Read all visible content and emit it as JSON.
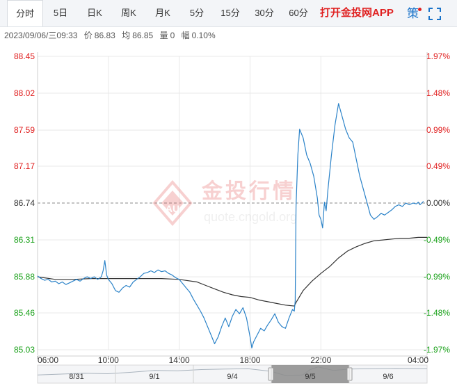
{
  "tabs": [
    {
      "label": "分时",
      "active": true
    },
    {
      "label": "5日"
    },
    {
      "label": "日K"
    },
    {
      "label": "周K"
    },
    {
      "label": "月K"
    },
    {
      "label": "5分"
    },
    {
      "label": "15分"
    },
    {
      "label": "30分"
    },
    {
      "label": "60分"
    }
  ],
  "app_link": "打开金投网APP",
  "ce_label": "策",
  "fullscreen_icon": "fullscreen-icon",
  "info": {
    "datetime": "2023/09/06/三09:33",
    "price_label": "价",
    "price": "86.83",
    "avg_label": "均",
    "avg": "86.85",
    "vol_label": "量",
    "vol": "0",
    "range_label": "幅",
    "range": "0.10%"
  },
  "watermark": {
    "text": "金投行情",
    "sub": "quote.cngold.org",
    "badge": "AU"
  },
  "colors": {
    "up": "#e02020",
    "down": "#1aa11a",
    "flat": "#333333",
    "price_line": "#2a82c8",
    "avg_line": "#333333",
    "grid": "#e8e8e8"
  },
  "chart_data": {
    "type": "line",
    "preclose": 86.74,
    "ylim": [
      85.03,
      88.45
    ],
    "y_ticks": [
      "88.45",
      "88.02",
      "87.59",
      "87.17",
      "86.74",
      "86.31",
      "85.88",
      "85.46",
      "85.03"
    ],
    "pct_ticks": [
      "1.97%",
      "1.48%",
      "0.99%",
      "0.49%",
      "0.00%",
      "-0.49%",
      "-0.99%",
      "-1.48%",
      "-1.97%"
    ],
    "x_ticks": [
      "06:00",
      "10:00",
      "14:00",
      "18:00",
      "22:00",
      "04:00"
    ],
    "x_tick_times": [
      0,
      4,
      8,
      12,
      16,
      22
    ],
    "x_range": [
      0,
      22
    ],
    "series": [
      {
        "points": [
          [
            0.0,
            85.89
          ],
          [
            0.2,
            85.86
          ],
          [
            0.4,
            85.84
          ],
          [
            0.6,
            85.85
          ],
          [
            0.8,
            85.82
          ],
          [
            1.0,
            85.83
          ],
          [
            1.2,
            85.8
          ],
          [
            1.4,
            85.82
          ],
          [
            1.6,
            85.79
          ],
          [
            1.8,
            85.81
          ],
          [
            2.0,
            85.83
          ],
          [
            2.2,
            85.85
          ],
          [
            2.4,
            85.83
          ],
          [
            2.6,
            85.86
          ],
          [
            2.8,
            85.88
          ],
          [
            3.0,
            85.86
          ],
          [
            3.2,
            85.88
          ],
          [
            3.4,
            85.85
          ],
          [
            3.6,
            85.88
          ],
          [
            3.7,
            85.95
          ],
          [
            3.8,
            86.07
          ],
          [
            3.9,
            85.9
          ],
          [
            4.0,
            85.85
          ],
          [
            4.2,
            85.8
          ],
          [
            4.4,
            85.72
          ],
          [
            4.6,
            85.7
          ],
          [
            4.8,
            85.75
          ],
          [
            5.0,
            85.78
          ],
          [
            5.2,
            85.76
          ],
          [
            5.4,
            85.82
          ],
          [
            5.6,
            85.85
          ],
          [
            5.8,
            85.88
          ],
          [
            6.0,
            85.92
          ],
          [
            6.2,
            85.93
          ],
          [
            6.4,
            85.95
          ],
          [
            6.6,
            85.93
          ],
          [
            6.8,
            85.96
          ],
          [
            7.0,
            85.94
          ],
          [
            7.2,
            85.95
          ],
          [
            7.4,
            85.92
          ],
          [
            7.6,
            85.9
          ],
          [
            7.8,
            85.87
          ],
          [
            8.0,
            85.85
          ],
          [
            8.2,
            85.8
          ],
          [
            8.4,
            85.75
          ],
          [
            8.6,
            85.7
          ],
          [
            8.8,
            85.62
          ],
          [
            9.0,
            85.55
          ],
          [
            9.2,
            85.48
          ],
          [
            9.4,
            85.4
          ],
          [
            9.6,
            85.3
          ],
          [
            9.8,
            85.2
          ],
          [
            10.0,
            85.1
          ],
          [
            10.2,
            85.18
          ],
          [
            10.4,
            85.3
          ],
          [
            10.6,
            85.4
          ],
          [
            10.8,
            85.3
          ],
          [
            11.0,
            85.42
          ],
          [
            11.2,
            85.5
          ],
          [
            11.4,
            85.45
          ],
          [
            11.6,
            85.52
          ],
          [
            11.8,
            85.4
          ],
          [
            12.0,
            85.18
          ],
          [
            12.1,
            85.05
          ],
          [
            12.2,
            85.12
          ],
          [
            12.4,
            85.2
          ],
          [
            12.6,
            85.28
          ],
          [
            12.8,
            85.25
          ],
          [
            13.0,
            85.32
          ],
          [
            13.2,
            85.38
          ],
          [
            13.4,
            85.45
          ],
          [
            13.6,
            85.35
          ],
          [
            13.8,
            85.3
          ],
          [
            14.0,
            85.28
          ],
          [
            14.2,
            85.4
          ],
          [
            14.4,
            85.5
          ],
          [
            14.5,
            85.48
          ],
          [
            14.55,
            85.6
          ],
          [
            14.6,
            86.7
          ],
          [
            14.7,
            87.3
          ],
          [
            14.8,
            87.6
          ],
          [
            15.0,
            87.5
          ],
          [
            15.2,
            87.3
          ],
          [
            15.4,
            87.2
          ],
          [
            15.6,
            87.05
          ],
          [
            15.8,
            86.8
          ],
          [
            15.9,
            86.6
          ],
          [
            16.0,
            86.55
          ],
          [
            16.1,
            86.45
          ],
          [
            16.2,
            86.75
          ],
          [
            16.3,
            86.65
          ],
          [
            16.4,
            86.9
          ],
          [
            16.6,
            87.3
          ],
          [
            16.8,
            87.65
          ],
          [
            17.0,
            87.9
          ],
          [
            17.2,
            87.75
          ],
          [
            17.4,
            87.6
          ],
          [
            17.6,
            87.5
          ],
          [
            17.8,
            87.45
          ],
          [
            18.0,
            87.25
          ],
          [
            18.2,
            87.05
          ],
          [
            18.4,
            86.9
          ],
          [
            18.6,
            86.75
          ],
          [
            18.8,
            86.6
          ],
          [
            19.0,
            86.55
          ],
          [
            19.2,
            86.58
          ],
          [
            19.4,
            86.62
          ],
          [
            19.6,
            86.6
          ],
          [
            19.8,
            86.63
          ],
          [
            20.0,
            86.66
          ],
          [
            20.2,
            86.7
          ],
          [
            20.4,
            86.72
          ],
          [
            20.6,
            86.7
          ],
          [
            20.8,
            86.74
          ],
          [
            21.0,
            86.72
          ],
          [
            21.2,
            86.74
          ],
          [
            21.4,
            86.73
          ],
          [
            21.5,
            86.75
          ],
          [
            21.6,
            86.72
          ],
          [
            21.8,
            86.76
          ]
        ]
      },
      {
        "points": [
          [
            0.0,
            85.88
          ],
          [
            1.0,
            85.85
          ],
          [
            2.0,
            85.85
          ],
          [
            3.0,
            85.86
          ],
          [
            4.0,
            85.86
          ],
          [
            5.0,
            85.86
          ],
          [
            6.0,
            85.86
          ],
          [
            7.0,
            85.86
          ],
          [
            8.0,
            85.85
          ],
          [
            9.0,
            85.82
          ],
          [
            9.5,
            85.78
          ],
          [
            10.0,
            85.74
          ],
          [
            10.5,
            85.7
          ],
          [
            11.0,
            85.67
          ],
          [
            11.5,
            85.65
          ],
          [
            12.0,
            85.64
          ],
          [
            12.5,
            85.61
          ],
          [
            13.0,
            85.59
          ],
          [
            13.5,
            85.57
          ],
          [
            14.0,
            85.55
          ],
          [
            14.5,
            85.54
          ],
          [
            14.6,
            85.58
          ],
          [
            15.0,
            85.72
          ],
          [
            15.5,
            85.83
          ],
          [
            16.0,
            85.92
          ],
          [
            16.5,
            86.0
          ],
          [
            17.0,
            86.1
          ],
          [
            17.5,
            86.18
          ],
          [
            18.0,
            86.23
          ],
          [
            18.5,
            86.27
          ],
          [
            19.0,
            86.3
          ],
          [
            19.5,
            86.31
          ],
          [
            20.0,
            86.32
          ],
          [
            20.5,
            86.33
          ],
          [
            21.0,
            86.33
          ],
          [
            21.5,
            86.34
          ],
          [
            22.0,
            86.34
          ]
        ]
      }
    ]
  },
  "navigator": {
    "labels": [
      "8/31",
      "9/1",
      "9/4",
      "9/5",
      "9/6"
    ],
    "label_days": [
      0.5,
      1.5,
      2.5,
      3.5,
      4.5
    ],
    "day_count": 5,
    "window_days": [
      3.0,
      4.0
    ],
    "track": [
      [
        0.0,
        0.55
      ],
      [
        0.3,
        0.5
      ],
      [
        0.6,
        0.45
      ],
      [
        0.9,
        0.48
      ],
      [
        1.2,
        0.4
      ],
      [
        1.5,
        0.3
      ],
      [
        1.8,
        0.32
      ],
      [
        2.1,
        0.25
      ],
      [
        2.4,
        0.22
      ],
      [
        2.7,
        0.2
      ],
      [
        3.0,
        0.35
      ],
      [
        3.2,
        0.6
      ],
      [
        3.4,
        0.55
      ],
      [
        3.5,
        0.25
      ],
      [
        3.6,
        0.1
      ],
      [
        3.8,
        0.3
      ],
      [
        4.0,
        0.22
      ],
      [
        4.3,
        0.2
      ],
      [
        4.6,
        0.18
      ],
      [
        5.0,
        0.2
      ]
    ]
  }
}
